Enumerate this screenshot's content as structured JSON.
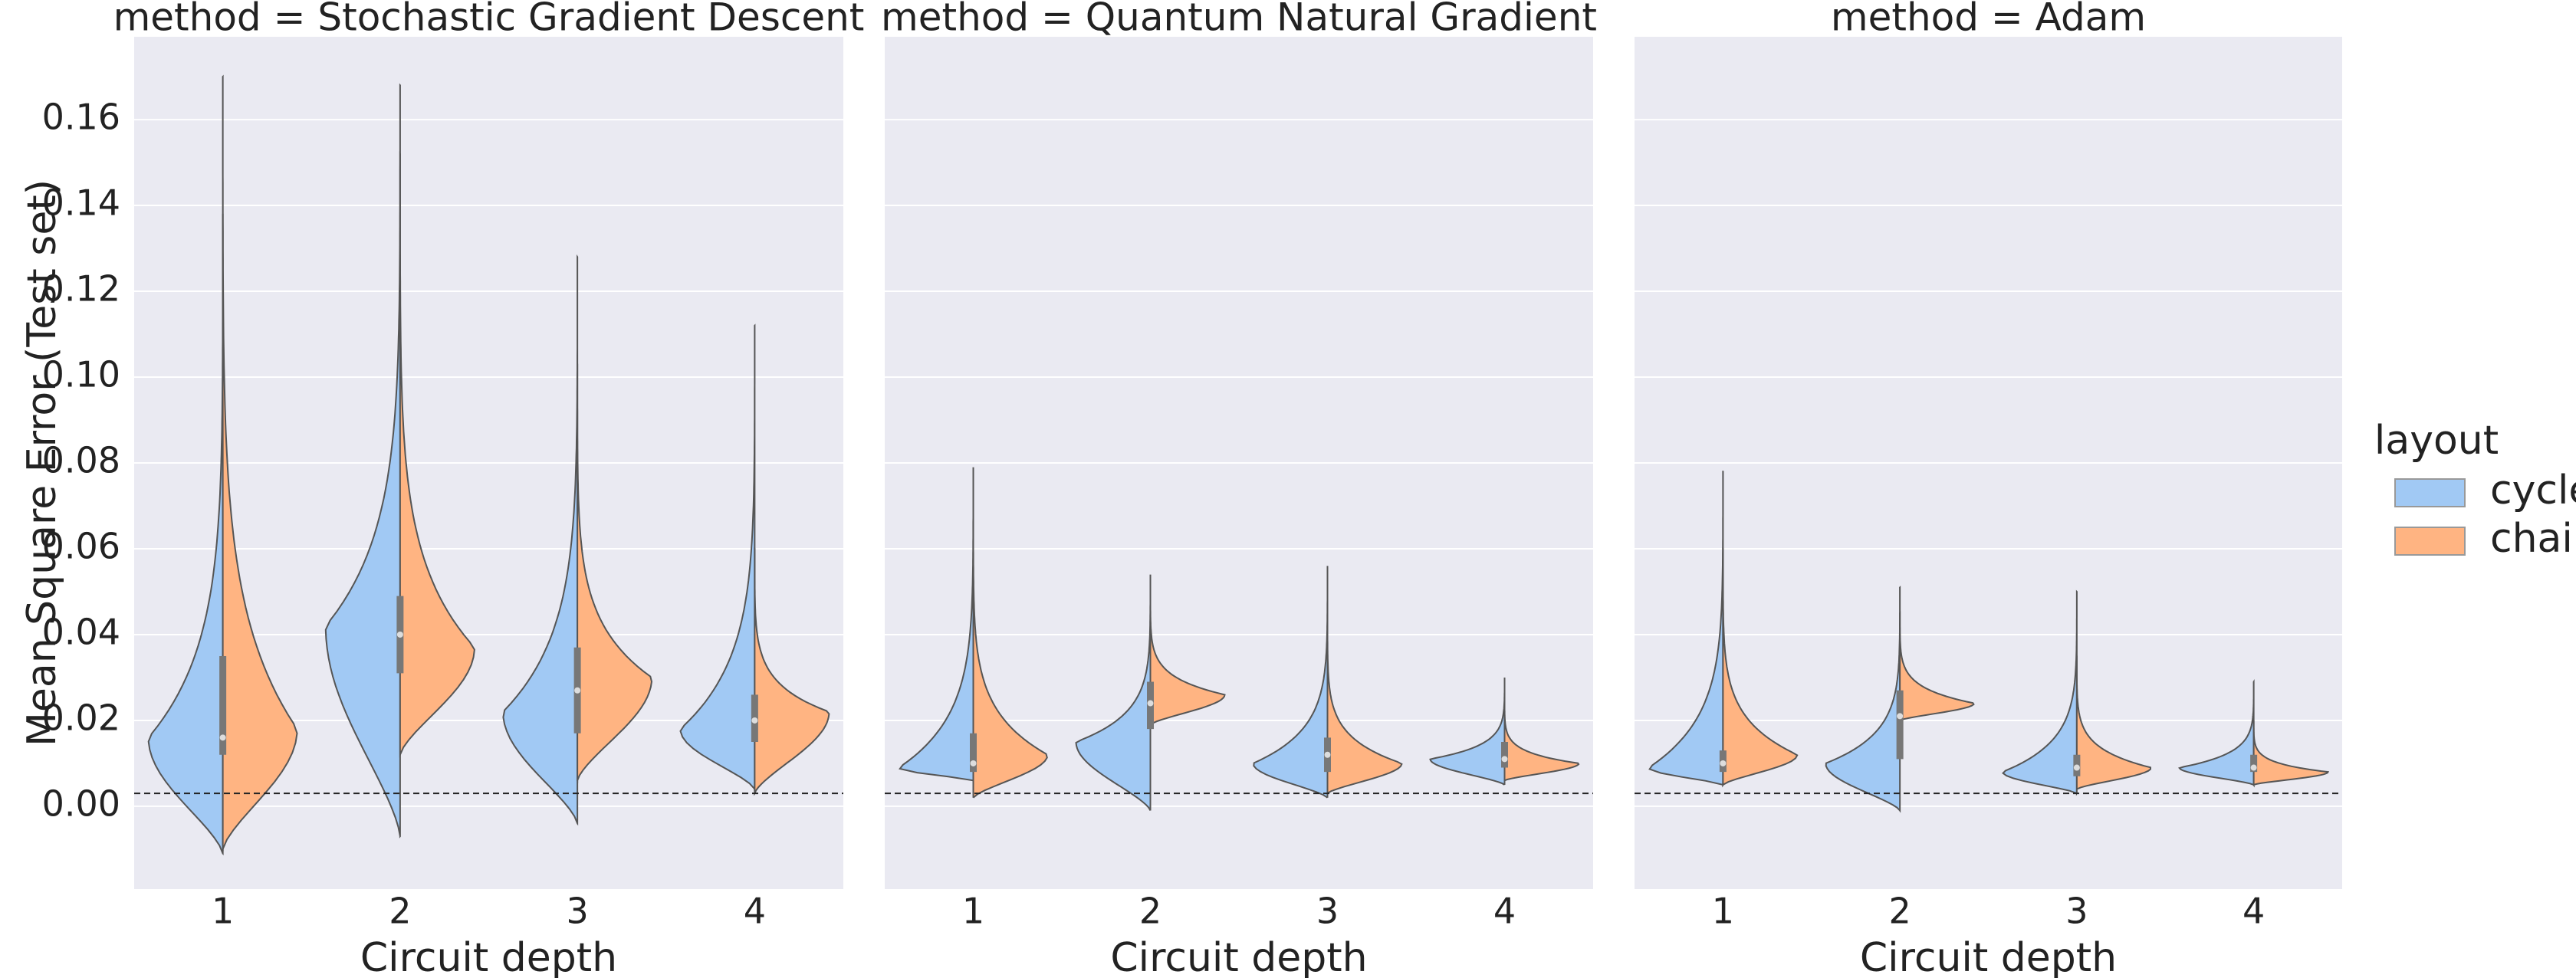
{
  "chart_data": [
    {
      "type": "violin",
      "title": "method = Stochastic Gradient Descent",
      "xlabel": "Circuit depth",
      "ylabel": "Mean Square Error (Test set)",
      "legend_title": "layout",
      "ylim": [
        -0.0193,
        0.1793
      ],
      "yticks": [
        {
          "value": 0,
          "label": "0.00"
        },
        {
          "value": 0.02,
          "label": "0.02"
        },
        {
          "value": 0.04,
          "label": "0.04"
        },
        {
          "value": 0.06,
          "label": "0.06"
        },
        {
          "value": 0.08,
          "label": "0.08"
        },
        {
          "value": 0.1,
          "label": "0.10"
        },
        {
          "value": 0.12,
          "label": "0.12"
        },
        {
          "value": 0.14,
          "label": "0.14"
        },
        {
          "value": 0.16,
          "label": "0.16"
        }
      ],
      "grid": true,
      "hline": 0.003,
      "categories": [
        "1",
        "2",
        "3",
        "4"
      ],
      "series": [
        {
          "name": "cycle",
          "color": "#a1c9f4",
          "min": [
            -0.011,
            -0.007,
            -0.004,
            0.004
          ],
          "mode": [
            0.016,
            0.042,
            0.022,
            0.018
          ],
          "max": [
            0.138,
            0.168,
            0.128,
            0.112
          ]
        },
        {
          "name": "chain",
          "color": "#ffb482",
          "min": [
            -0.01,
            0.012,
            0.006,
            0.003
          ],
          "mode": [
            0.018,
            0.037,
            0.03,
            0.022
          ],
          "max": [
            0.17,
            0.152,
            0.103,
            0.06
          ]
        }
      ],
      "box": {
        "q1": [
          0.012,
          0.031,
          0.017,
          0.015
        ],
        "median": [
          0.016,
          0.04,
          0.027,
          0.02
        ],
        "q3": [
          0.035,
          0.049,
          0.037,
          0.026
        ]
      }
    },
    {
      "type": "violin",
      "title": "method = Quantum Natural Gradient",
      "xlabel": "Circuit depth",
      "hline": 0.003,
      "categories": [
        "1",
        "2",
        "3",
        "4"
      ],
      "series": [
        {
          "name": "cycle",
          "color": "#a1c9f4",
          "min": [
            0.006,
            -0.001,
            0.002,
            0.005
          ],
          "mode": [
            0.009,
            0.015,
            0.01,
            0.011
          ],
          "max": [
            0.079,
            0.054,
            0.056,
            0.03
          ]
        },
        {
          "name": "chain",
          "color": "#ffb482",
          "min": [
            0.002,
            0.019,
            0.003,
            0.006
          ],
          "mode": [
            0.012,
            0.026,
            0.01,
            0.01
          ],
          "max": [
            0.07,
            0.05,
            0.045,
            0.025
          ]
        }
      ],
      "box": {
        "q1": [
          0.008,
          0.018,
          0.008,
          0.009
        ],
        "median": [
          0.01,
          0.024,
          0.012,
          0.011
        ],
        "q3": [
          0.017,
          0.029,
          0.016,
          0.015
        ]
      }
    },
    {
      "type": "violin",
      "title": "method = Adam",
      "xlabel": "Circuit depth",
      "hline": 0.003,
      "categories": [
        "1",
        "2",
        "3",
        "4"
      ],
      "series": [
        {
          "name": "cycle",
          "color": "#a1c9f4",
          "min": [
            0.005,
            -0.001,
            0.003,
            0.005
          ],
          "mode": [
            0.009,
            0.01,
            0.008,
            0.009
          ],
          "max": [
            0.078,
            0.051,
            0.05,
            0.029
          ]
        },
        {
          "name": "chain",
          "color": "#ffb482",
          "min": [
            0.005,
            0.02,
            0.004,
            0.005
          ],
          "mode": [
            0.012,
            0.024,
            0.009,
            0.008
          ],
          "max": [
            0.06,
            0.045,
            0.035,
            0.02
          ]
        }
      ],
      "box": {
        "q1": [
          0.008,
          0.011,
          0.007,
          0.008
        ],
        "median": [
          0.01,
          0.021,
          0.009,
          0.009
        ],
        "q3": [
          0.013,
          0.027,
          0.012,
          0.012
        ]
      }
    }
  ]
}
